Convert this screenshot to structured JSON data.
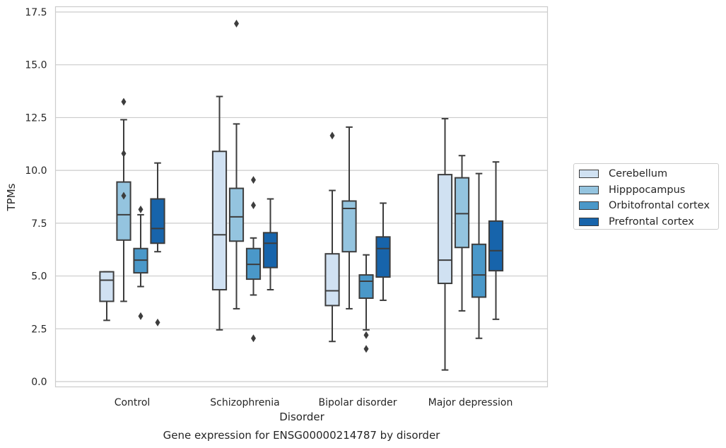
{
  "chart_data": {
    "type": "box",
    "title": "",
    "caption": "Gene expression for ENSG00000214787 by disorder",
    "xlabel": "Disorder",
    "ylabel": "TPMs",
    "ylim": [
      -0.25,
      17.75
    ],
    "yticks": [
      0.0,
      2.5,
      5.0,
      7.5,
      10.0,
      12.5,
      15.0,
      17.5
    ],
    "ytick_labels": [
      "0.0",
      "2.5",
      "5.0",
      "7.5",
      "10.0",
      "12.5",
      "15.0",
      "17.5"
    ],
    "grid": "horizontal",
    "legend_position": "right",
    "categories": [
      "Control",
      "Schizophrenia",
      "Bipolar disorder",
      "Major depression"
    ],
    "series": [
      {
        "name": "Cerebellum",
        "color": "#d0e1f2",
        "boxes": [
          {
            "whislo": 2.9,
            "q1": 3.8,
            "med": 4.8,
            "q3": 5.2,
            "whishi": 5.2,
            "fliers": []
          },
          {
            "whislo": 2.45,
            "q1": 4.35,
            "med": 6.95,
            "q3": 10.9,
            "whishi": 13.5,
            "fliers": []
          },
          {
            "whislo": 1.9,
            "q1": 3.6,
            "med": 4.3,
            "q3": 6.05,
            "whishi": 9.05,
            "fliers": [
              11.65
            ]
          },
          {
            "whislo": 0.55,
            "q1": 4.65,
            "med": 5.75,
            "q3": 9.8,
            "whishi": 12.45,
            "fliers": []
          }
        ]
      },
      {
        "name": "Hipppocampus",
        "color": "#94c4df",
        "boxes": [
          {
            "whislo": 3.8,
            "q1": 6.7,
            "med": 7.9,
            "q3": 9.45,
            "whishi": 12.4,
            "fliers": [
              13.25,
              10.8,
              8.8
            ]
          },
          {
            "whislo": 3.45,
            "q1": 6.65,
            "med": 7.8,
            "q3": 9.15,
            "whishi": 12.2,
            "fliers": [
              16.95
            ]
          },
          {
            "whislo": 3.45,
            "q1": 6.15,
            "med": 8.2,
            "q3": 8.55,
            "whishi": 12.05,
            "fliers": []
          },
          {
            "whislo": 3.35,
            "q1": 6.35,
            "med": 7.95,
            "q3": 9.65,
            "whishi": 10.7,
            "fliers": []
          }
        ]
      },
      {
        "name": "Orbitofrontal cortex",
        "color": "#4a98c9",
        "boxes": [
          {
            "whislo": 4.5,
            "q1": 5.15,
            "med": 5.75,
            "q3": 6.3,
            "whishi": 7.9,
            "fliers": [
              8.15,
              3.1
            ]
          },
          {
            "whislo": 4.1,
            "q1": 4.85,
            "med": 5.55,
            "q3": 6.3,
            "whishi": 6.8,
            "fliers": [
              9.55,
              8.35,
              2.05
            ]
          },
          {
            "whislo": 2.45,
            "q1": 3.95,
            "med": 4.75,
            "q3": 5.05,
            "whishi": 6.0,
            "fliers": [
              2.2,
              1.55
            ]
          },
          {
            "whislo": 2.05,
            "q1": 4.0,
            "med": 5.05,
            "q3": 6.5,
            "whishi": 9.85,
            "fliers": []
          }
        ]
      },
      {
        "name": "Prefrontal cortex",
        "color": "#1764ab",
        "boxes": [
          {
            "whislo": 6.15,
            "q1": 6.55,
            "med": 7.25,
            "q3": 8.65,
            "whishi": 10.35,
            "fliers": [
              2.8
            ]
          },
          {
            "whislo": 4.35,
            "q1": 5.4,
            "med": 6.55,
            "q3": 7.05,
            "whishi": 8.65,
            "fliers": []
          },
          {
            "whislo": 3.85,
            "q1": 4.95,
            "med": 6.3,
            "q3": 6.85,
            "whishi": 8.45,
            "fliers": []
          },
          {
            "whislo": 2.95,
            "q1": 5.25,
            "med": 6.2,
            "q3": 7.6,
            "whishi": 10.4,
            "fliers": []
          }
        ]
      }
    ]
  }
}
